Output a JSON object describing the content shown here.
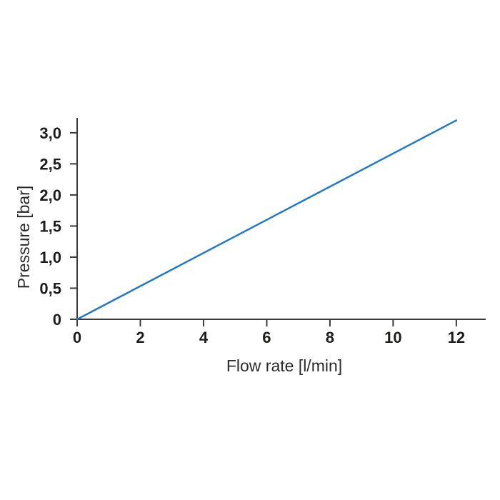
{
  "figure": {
    "background_color": "#ffffff"
  },
  "chart_data": {
    "type": "line",
    "title": "",
    "xlabel": "Flow rate [l/min]",
    "ylabel": "Pressure [bar]",
    "xlim": [
      0,
      12.93
    ],
    "ylim": [
      0,
      3.24
    ],
    "grid": false,
    "legend": "none",
    "axis_color": "#3a3a3a",
    "tick_label_color": "#1d1d1b",
    "x_ticks": [
      0,
      2,
      4,
      6,
      8,
      10,
      12
    ],
    "x_tick_labels": [
      "0",
      "2",
      "4",
      "6",
      "8",
      "10",
      "12"
    ],
    "y_ticks": [
      0,
      0.5,
      1.0,
      1.5,
      2.0,
      2.5,
      3.0
    ],
    "y_tick_labels": [
      "0",
      "0,5",
      "1,0",
      "1,5",
      "2,0",
      "2,5",
      "3,0"
    ],
    "series": [
      {
        "name": "pressure-vs-flow-rate",
        "color": "#1f78c8",
        "points": [
          [
            0,
            0
          ],
          [
            12,
            3.2
          ]
        ]
      }
    ]
  }
}
